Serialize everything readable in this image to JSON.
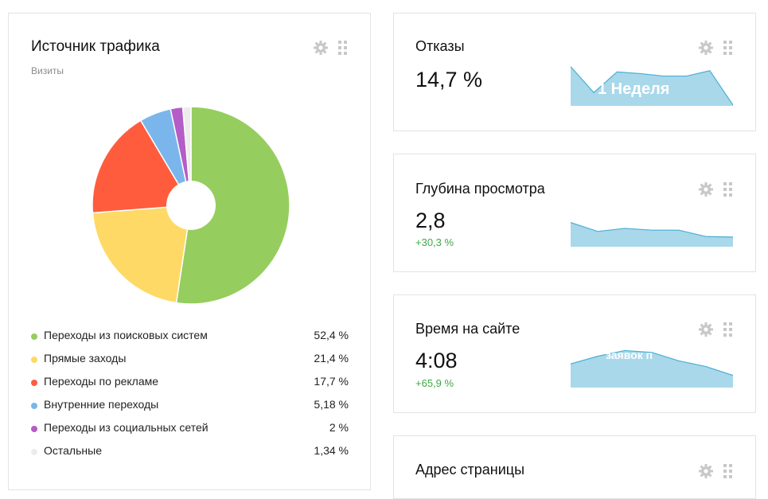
{
  "traffic": {
    "title": "Источник трафика",
    "subtitle": "Визиты",
    "legend": [
      {
        "label": "Переходы из поисковых систем",
        "value": "52,4 %",
        "color": "#96cd5f"
      },
      {
        "label": "Прямые заходы",
        "value": "21,4 %",
        "color": "#ffd966"
      },
      {
        "label": "Переходы по рекламе",
        "value": "17,7 %",
        "color": "#ff5c3d"
      },
      {
        "label": "Внутренние переходы",
        "value": "5,18 %",
        "color": "#7ab6ec"
      },
      {
        "label": "Переходы из социальных сетей",
        "value": "2 %",
        "color": "#b45cc7"
      },
      {
        "label": "Остальные",
        "value": "1,34 %",
        "color": "#ececec"
      }
    ]
  },
  "chart_data": {
    "type": "pie",
    "title": "Источник трафика",
    "subtitle": "Визиты",
    "categories": [
      "Переходы из поисковых систем",
      "Прямые заходы",
      "Переходы по рекламе",
      "Внутренние переходы",
      "Переходы из социальных сетей",
      "Остальные"
    ],
    "values": [
      52.4,
      21.4,
      17.7,
      5.18,
      2,
      1.34
    ],
    "colors": [
      "#96cd5f",
      "#ffd966",
      "#ff5c3d",
      "#7ab6ec",
      "#b45cc7",
      "#ececec"
    ]
  },
  "bounce": {
    "title": "Отказы",
    "value": "14,7 %",
    "overlay": "1 Неделя",
    "spark": [
      0.95,
      0.32,
      0.82,
      0.78,
      0.72,
      0.72,
      0.85,
      0.02
    ]
  },
  "depth": {
    "title": "Глубина просмотра",
    "value": "2,8",
    "delta": "+30,3 %",
    "spark": [
      0.95,
      0.6,
      0.72,
      0.65,
      0.65,
      0.4,
      0.38
    ]
  },
  "time": {
    "title": "Время на сайте",
    "value": "4:08",
    "delta": "+65,9 %",
    "overlay": "заявок п",
    "spark": [
      0.62,
      0.82,
      0.97,
      0.92,
      0.7,
      0.55,
      0.32
    ]
  },
  "address": {
    "title": "Адрес страницы"
  },
  "colors": {
    "spark_fill": "#a9d8ea",
    "spark_line": "#4aaed6",
    "delta_positive": "#3fa844",
    "icon": "#c8c8c8"
  }
}
